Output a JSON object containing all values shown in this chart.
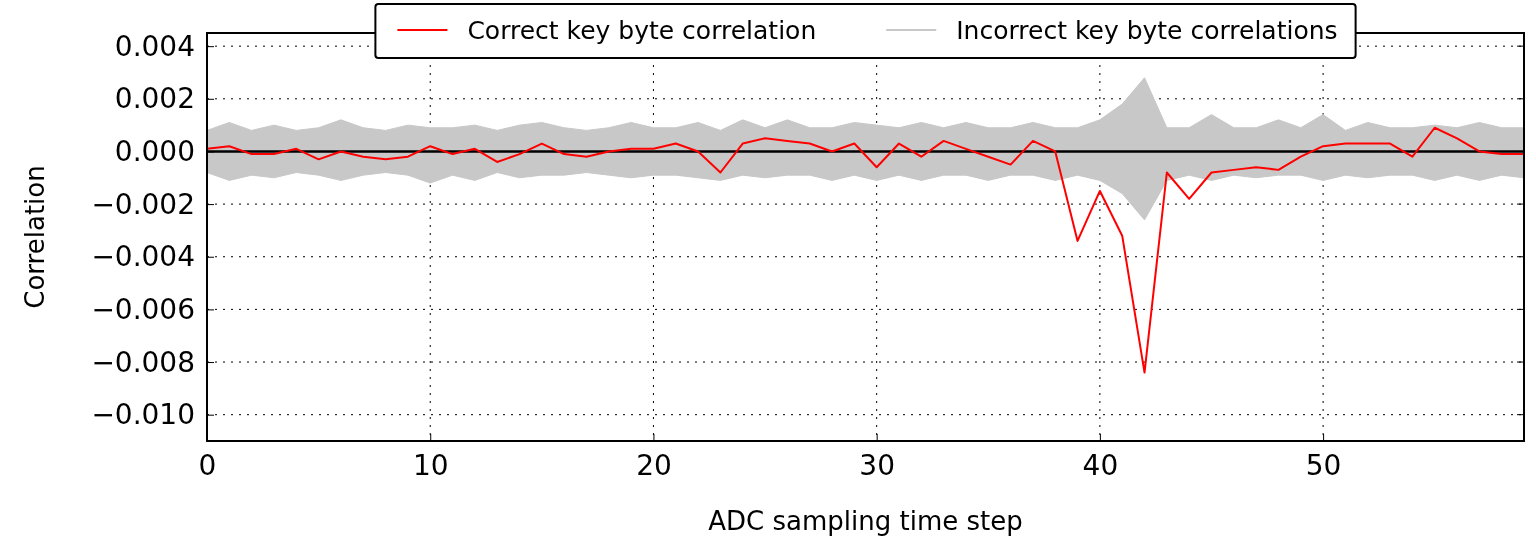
{
  "chart_data": {
    "type": "line",
    "xlabel": "ADC sampling time step",
    "ylabel": "Correlation",
    "x": [
      0,
      1,
      2,
      3,
      4,
      5,
      6,
      7,
      8,
      9,
      10,
      11,
      12,
      13,
      14,
      15,
      16,
      17,
      18,
      19,
      20,
      21,
      22,
      23,
      24,
      25,
      26,
      27,
      28,
      29,
      30,
      31,
      32,
      33,
      34,
      35,
      36,
      37,
      38,
      39,
      40,
      41,
      42,
      43,
      44,
      45,
      46,
      47,
      48,
      49,
      50,
      51,
      52,
      53,
      54,
      55,
      56,
      57,
      58,
      59
    ],
    "series": [
      {
        "name": "Incorrect key byte correlations",
        "type": "area",
        "color": "#c8c8c8",
        "values": [
          0.0008,
          0.0011,
          0.0008,
          0.001,
          0.0008,
          0.0009,
          0.0012,
          0.0009,
          0.0008,
          0.001,
          0.0009,
          0.0009,
          0.001,
          0.0008,
          0.001,
          0.0011,
          0.0009,
          0.0008,
          0.0009,
          0.0011,
          0.0009,
          0.0009,
          0.0011,
          0.0008,
          0.0012,
          0.0009,
          0.0012,
          0.0009,
          0.0009,
          0.0011,
          0.001,
          0.0009,
          0.0011,
          0.0009,
          0.0011,
          0.0009,
          0.0009,
          0.0011,
          0.0009,
          0.0009,
          0.0012,
          0.0018,
          0.0028,
          0.0009,
          0.0009,
          0.0014,
          0.0009,
          0.0009,
          0.0012,
          0.0009,
          0.0014,
          0.0008,
          0.0011,
          0.0009,
          0.0009,
          0.001,
          0.0009,
          0.0011,
          0.0009,
          0.0009
        ]
      },
      {
        "type": "area",
        "color": "#c8c8c8",
        "values": [
          -0.0008,
          -0.0011,
          -0.0009,
          -0.001,
          -0.0008,
          -0.0009,
          -0.0011,
          -0.0009,
          -0.0008,
          -0.0009,
          -0.0012,
          -0.0009,
          -0.0011,
          -0.0008,
          -0.001,
          -0.0009,
          -0.0009,
          -0.0008,
          -0.0009,
          -0.001,
          -0.0009,
          -0.0009,
          -0.001,
          -0.0011,
          -0.0009,
          -0.001,
          -0.0009,
          -0.0009,
          -0.0011,
          -0.0009,
          -0.0011,
          -0.0009,
          -0.0011,
          -0.0009,
          -0.0009,
          -0.0011,
          -0.0009,
          -0.0009,
          -0.0011,
          -0.0009,
          -0.0011,
          -0.0016,
          -0.0026,
          -0.0011,
          -0.0009,
          -0.0011,
          -0.0009,
          -0.001,
          -0.0009,
          -0.0009,
          -0.0011,
          -0.0009,
          -0.001,
          -0.0009,
          -0.0009,
          -0.0011,
          -0.0009,
          -0.0011,
          -0.0009,
          -0.001
        ]
      },
      {
        "name": "Correct key byte correlation",
        "color": "#ff0000",
        "values": [
          0.0001,
          0.0002,
          -0.0001,
          -0.0001,
          0.0001,
          -0.0003,
          0.0,
          -0.0002,
          -0.0003,
          -0.0002,
          0.0002,
          -0.0001,
          0.0001,
          -0.0004,
          -0.0001,
          0.0003,
          -0.0001,
          -0.0002,
          0.0,
          0.0001,
          0.0001,
          0.0003,
          0.0,
          -0.0008,
          0.0003,
          0.0005,
          0.0004,
          0.0003,
          0.0,
          0.0003,
          -0.0006,
          0.0003,
          -0.0002,
          0.0004,
          0.0001,
          -0.0002,
          -0.0005,
          0.0004,
          0.0,
          -0.0034,
          -0.0015,
          -0.0032,
          -0.0084,
          -0.0008,
          -0.0018,
          -0.0008,
          -0.0007,
          -0.0006,
          -0.0007,
          -0.0002,
          0.0002,
          0.0003,
          0.0003,
          0.0003,
          -0.0002,
          0.0009,
          0.0005,
          0.0,
          -0.0001,
          -0.0001
        ]
      }
    ],
    "xlim": [
      0,
      59
    ],
    "xticks": [
      0,
      10,
      20,
      30,
      40,
      50
    ],
    "ylim": [
      -0.011,
      0.0045
    ],
    "yticks": [
      {
        "value": -0.01,
        "label": "−0.010"
      },
      {
        "value": -0.008,
        "label": "−0.008"
      },
      {
        "value": -0.006,
        "label": "−0.006"
      },
      {
        "value": -0.004,
        "label": "−0.004"
      },
      {
        "value": -0.002,
        "label": "−0.002"
      },
      {
        "value": 0,
        "label": "0.000"
      },
      {
        "value": 0.002,
        "label": "0.002"
      },
      {
        "value": 0.004,
        "label": "0.004"
      }
    ],
    "ref_lines": [
      {
        "axis": "y",
        "value": 0,
        "color": "#000000"
      }
    ],
    "grid": true,
    "legend": "top",
    "line_style": "solid",
    "marker": "none"
  }
}
